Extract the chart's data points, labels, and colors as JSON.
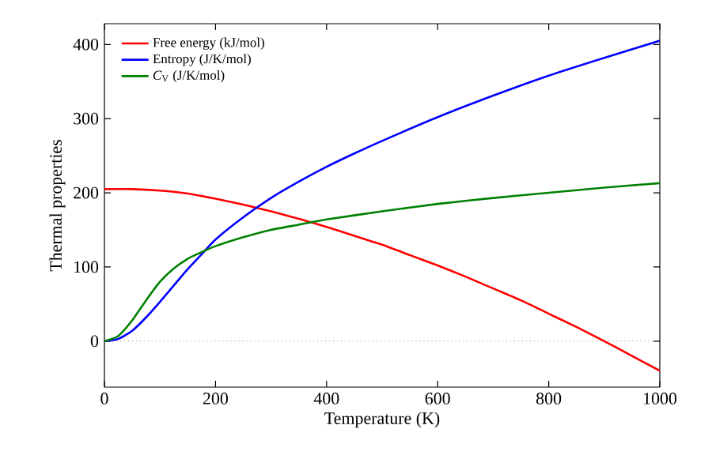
{
  "chart_data": {
    "type": "line",
    "xlabel": "Temperature (K)",
    "ylabel": "Thermal properties",
    "xlim": [
      0,
      1000
    ],
    "ylim": [
      -62,
      428
    ],
    "xticks": [
      0,
      200,
      400,
      600,
      800,
      1000
    ],
    "yticks": [
      0,
      100,
      200,
      300,
      400
    ],
    "grid": false,
    "legend": "top left",
    "marker": "none",
    "line_style": "solid",
    "ref_lines": [
      {
        "axis": "y",
        "value": 0,
        "color": "#808080",
        "line_style": "dotted"
      }
    ],
    "series": [
      {
        "name": "Free energy (kJ/mol)",
        "color": "#ff0000",
        "x": [
          0,
          50,
          100,
          150,
          200,
          250,
          300,
          350,
          400,
          450,
          500,
          550,
          600,
          650,
          700,
          750,
          800,
          850,
          900,
          950,
          1000
        ],
        "values": [
          205,
          205,
          203,
          199,
          192,
          184,
          175,
          165,
          154,
          142,
          130,
          116,
          102,
          87,
          71,
          55,
          37,
          19,
          0,
          -20,
          -40
        ]
      },
      {
        "name": "Entropy (J/K/mol)",
        "color": "#0000ff",
        "x": [
          0,
          25,
          50,
          75,
          100,
          125,
          150,
          175,
          200,
          250,
          300,
          350,
          400,
          450,
          500,
          600,
          700,
          800,
          900,
          1000
        ],
        "values": [
          0,
          3,
          14,
          32,
          53,
          75,
          97,
          117,
          137,
          167,
          193,
          215,
          235,
          253,
          270,
          302,
          331,
          358,
          382,
          405
        ]
      },
      {
        "name": "*C*$_{V}$ (J/K/mol)",
        "color": "#008000",
        "x": [
          0,
          25,
          50,
          75,
          100,
          125,
          150,
          175,
          200,
          250,
          300,
          350,
          400,
          500,
          600,
          700,
          800,
          900,
          1000
        ],
        "values": [
          0,
          7,
          28,
          55,
          80,
          98,
          111,
          120,
          128,
          140,
          150,
          157,
          164,
          175,
          185,
          193,
          200,
          207,
          213
        ]
      }
    ]
  }
}
